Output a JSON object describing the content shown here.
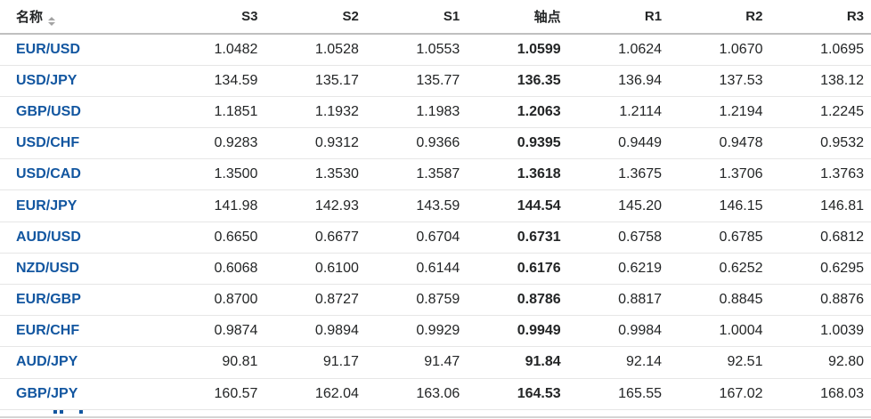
{
  "table": {
    "columns": [
      {
        "key": "name",
        "label": "名称"
      },
      {
        "key": "s3",
        "label": "S3"
      },
      {
        "key": "s2",
        "label": "S2"
      },
      {
        "key": "s1",
        "label": "S1"
      },
      {
        "key": "pivot",
        "label": "轴点"
      },
      {
        "key": "r1",
        "label": "R1"
      },
      {
        "key": "r2",
        "label": "R2"
      },
      {
        "key": "r3",
        "label": "R3"
      }
    ],
    "rows": [
      {
        "name": "EUR/USD",
        "s3": "1.0482",
        "s2": "1.0528",
        "s1": "1.0553",
        "pivot": "1.0599",
        "r1": "1.0624",
        "r2": "1.0670",
        "r3": "1.0695"
      },
      {
        "name": "USD/JPY",
        "s3": "134.59",
        "s2": "135.17",
        "s1": "135.77",
        "pivot": "136.35",
        "r1": "136.94",
        "r2": "137.53",
        "r3": "138.12"
      },
      {
        "name": "GBP/USD",
        "s3": "1.1851",
        "s2": "1.1932",
        "s1": "1.1983",
        "pivot": "1.2063",
        "r1": "1.2114",
        "r2": "1.2194",
        "r3": "1.2245"
      },
      {
        "name": "USD/CHF",
        "s3": "0.9283",
        "s2": "0.9312",
        "s1": "0.9366",
        "pivot": "0.9395",
        "r1": "0.9449",
        "r2": "0.9478",
        "r3": "0.9532"
      },
      {
        "name": "USD/CAD",
        "s3": "1.3500",
        "s2": "1.3530",
        "s1": "1.3587",
        "pivot": "1.3618",
        "r1": "1.3675",
        "r2": "1.3706",
        "r3": "1.3763"
      },
      {
        "name": "EUR/JPY",
        "s3": "141.98",
        "s2": "142.93",
        "s1": "143.59",
        "pivot": "144.54",
        "r1": "145.20",
        "r2": "146.15",
        "r3": "146.81"
      },
      {
        "name": "AUD/USD",
        "s3": "0.6650",
        "s2": "0.6677",
        "s1": "0.6704",
        "pivot": "0.6731",
        "r1": "0.6758",
        "r2": "0.6785",
        "r3": "0.6812"
      },
      {
        "name": "NZD/USD",
        "s3": "0.6068",
        "s2": "0.6100",
        "s1": "0.6144",
        "pivot": "0.6176",
        "r1": "0.6219",
        "r2": "0.6252",
        "r3": "0.6295"
      },
      {
        "name": "EUR/GBP",
        "s3": "0.8700",
        "s2": "0.8727",
        "s1": "0.8759",
        "pivot": "0.8786",
        "r1": "0.8817",
        "r2": "0.8845",
        "r3": "0.8876"
      },
      {
        "name": "EUR/CHF",
        "s3": "0.9874",
        "s2": "0.9894",
        "s1": "0.9929",
        "pivot": "0.9949",
        "r1": "0.9984",
        "r2": "1.0004",
        "r3": "1.0039"
      },
      {
        "name": "AUD/JPY",
        "s3": "90.81",
        "s2": "91.17",
        "s1": "91.47",
        "pivot": "91.84",
        "r1": "92.14",
        "r2": "92.51",
        "r3": "92.80"
      },
      {
        "name": "GBP/JPY",
        "s3": "160.57",
        "s2": "162.04",
        "s1": "163.06",
        "pivot": "164.53",
        "r1": "165.55",
        "r2": "167.02",
        "r3": "168.03"
      }
    ]
  },
  "icons": {
    "sort_icon": "up-down-sort-arrows"
  },
  "colors": {
    "link_blue": "#1256a0",
    "header_text": "#232526",
    "value_text": "#232526",
    "row_border": "#e6e6e6",
    "header_border": "#bfbfbf",
    "sort_icon": "#a3a3a3",
    "bottom_bar": "#d4d4d4"
  }
}
